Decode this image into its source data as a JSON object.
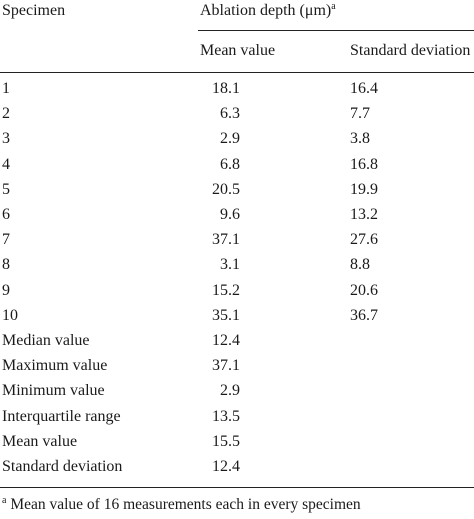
{
  "table": {
    "header": {
      "col_specimen": "Specimen",
      "group_label": "Ablation depth (μm)",
      "group_footnote_mark": "a",
      "col_mean": "Mean value",
      "col_sd": "Standard deviation"
    },
    "rows": [
      {
        "label": "1",
        "mean": "18.1",
        "sd": "16.4"
      },
      {
        "label": "2",
        "mean": "6.3",
        "sd": "7.7"
      },
      {
        "label": "3",
        "mean": "2.9",
        "sd": "3.8"
      },
      {
        "label": "4",
        "mean": "6.8",
        "sd": "16.8"
      },
      {
        "label": "5",
        "mean": "20.5",
        "sd": "19.9"
      },
      {
        "label": "6",
        "mean": "9.6",
        "sd": "13.2"
      },
      {
        "label": "7",
        "mean": "37.1",
        "sd": "27.6"
      },
      {
        "label": "8",
        "mean": "3.1",
        "sd": "8.8"
      },
      {
        "label": "9",
        "mean": "15.2",
        "sd": "20.6"
      },
      {
        "label": "10",
        "mean": "35.1",
        "sd": "36.7"
      }
    ],
    "summary": [
      {
        "label": "Median value",
        "value": "12.4"
      },
      {
        "label": "Maximum value",
        "value": "37.1"
      },
      {
        "label": "Minimum value",
        "value": "2.9"
      },
      {
        "label": "Interquartile range",
        "value": "13.5"
      },
      {
        "label": "Mean value",
        "value": "15.5"
      },
      {
        "label": "Standard deviation",
        "value": "12.4"
      }
    ],
    "footnote_mark": "a",
    "footnote_text": "Mean value of 16 measurements each in every specimen"
  }
}
